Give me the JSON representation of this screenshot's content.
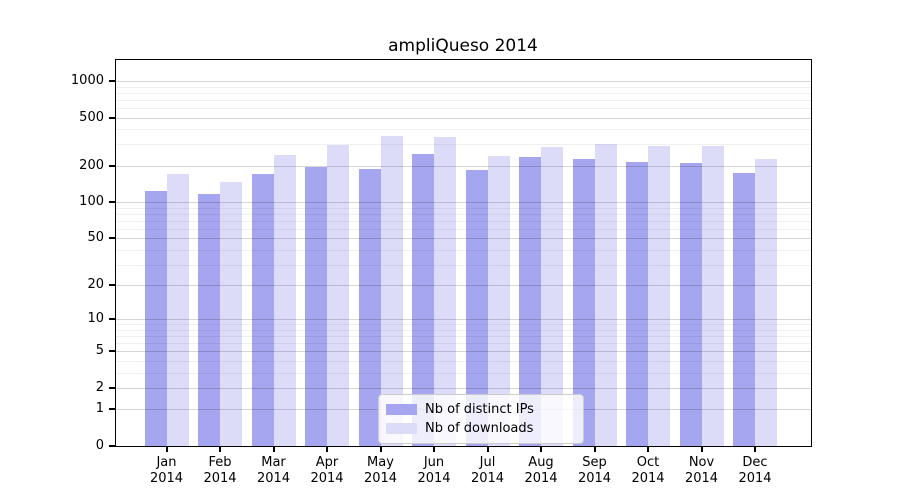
{
  "chart_data": {
    "type": "bar",
    "title": "ampliQueso 2014",
    "categories": [
      "Jan",
      "Feb",
      "Mar",
      "Apr",
      "May",
      "Jun",
      "Jul",
      "Aug",
      "Sep",
      "Oct",
      "Nov",
      "Dec"
    ],
    "year": "2014",
    "series": [
      {
        "name": "Nb of distinct IPs",
        "color": "#a5a5f0",
        "values": [
          125,
          118,
          172,
          197,
          190,
          252,
          186,
          235,
          226,
          214,
          211,
          174
        ]
      },
      {
        "name": "Nb of downloads",
        "color": "#dcdcf8",
        "values": [
          170,
          148,
          248,
          296,
          352,
          344,
          242,
          287,
          303,
          292,
          294,
          226
        ]
      }
    ],
    "yscale": "log1p",
    "yticks": [
      0,
      1,
      2,
      5,
      10,
      20,
      50,
      100,
      200,
      500,
      1000
    ],
    "yticks_minor": [
      3,
      4,
      6,
      7,
      8,
      9,
      30,
      40,
      60,
      70,
      80,
      90,
      300,
      400,
      600,
      700,
      800,
      900
    ],
    "ylim": [
      0,
      1000
    ],
    "xlabel": "",
    "ylabel": "",
    "grid": "horizontal",
    "legend_position": "bottom-center",
    "axis_color": "#000000",
    "background_color": "#ffffff"
  }
}
